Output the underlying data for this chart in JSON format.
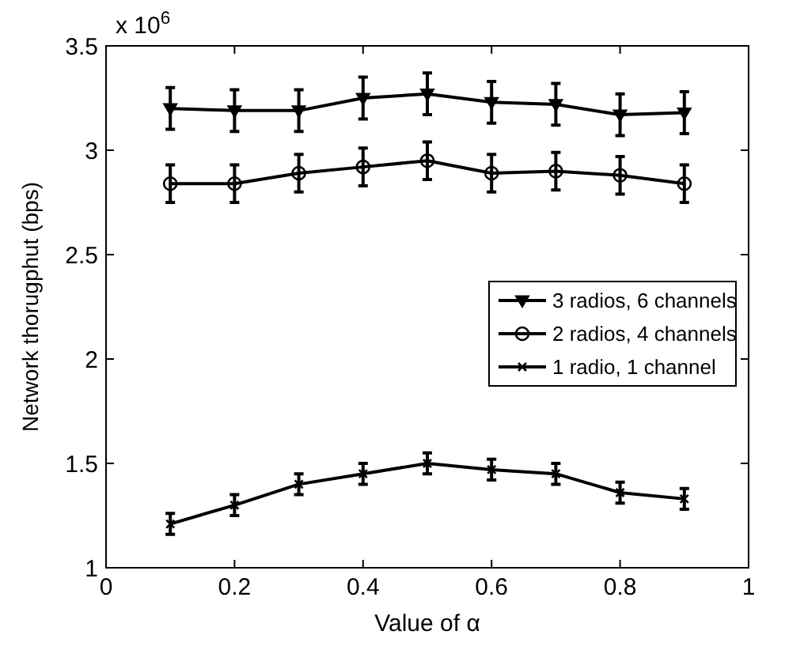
{
  "chart_data": {
    "type": "line",
    "xlabel": "Value of α",
    "ylabel": "Network thorugphut (bps)",
    "annotations": [
      "x 10$^{6}$"
    ],
    "x": [
      0.1,
      0.2,
      0.3,
      0.4,
      0.5,
      0.6,
      0.7,
      0.8,
      0.9
    ],
    "series": [
      {
        "name": "3 radios, 6 channels",
        "color": "#000000",
        "marker": "triangle",
        "values": [
          3.2,
          3.19,
          3.19,
          3.25,
          3.27,
          3.23,
          3.22,
          3.17,
          3.18
        ],
        "errors": [
          0.1,
          0.1,
          0.1,
          0.1,
          0.1,
          0.1,
          0.1,
          0.1,
          0.1
        ]
      },
      {
        "name": "2 radios, 4 channels",
        "color": "#000000",
        "marker": "circle",
        "values": [
          2.84,
          2.84,
          2.89,
          2.92,
          2.95,
          2.89,
          2.9,
          2.88,
          2.84
        ],
        "errors": [
          0.09,
          0.09,
          0.09,
          0.09,
          0.09,
          0.09,
          0.09,
          0.09,
          0.09
        ]
      },
      {
        "name": "1 radio, 1 channel",
        "color": "#000000",
        "marker": "cross",
        "values": [
          1.21,
          1.3,
          1.4,
          1.45,
          1.5,
          1.47,
          1.45,
          1.36,
          1.33
        ],
        "errors": [
          0.05,
          0.05,
          0.05,
          0.05,
          0.05,
          0.05,
          0.05,
          0.05,
          0.05
        ]
      }
    ],
    "xlim": [
      0,
      1
    ],
    "xticks": [
      0,
      0.2,
      0.4,
      0.6,
      0.8,
      1
    ],
    "ylim": [
      1,
      3.5
    ],
    "yticks": [
      1,
      1.5,
      2,
      2.5,
      3,
      3.5
    ],
    "legend": "right",
    "grid": false,
    "line_style": "solid"
  }
}
